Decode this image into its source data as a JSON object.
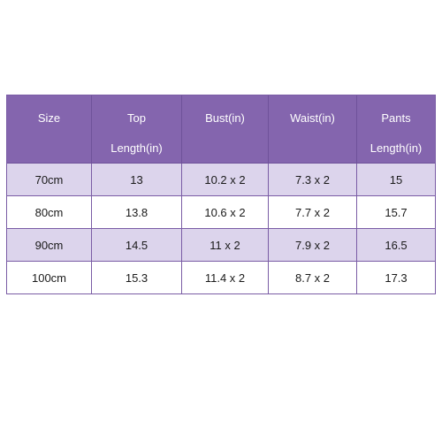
{
  "table": {
    "headers": [
      {
        "line1": "Size",
        "line2": ""
      },
      {
        "line1": "Top",
        "line2": "Length(in)"
      },
      {
        "line1": "Bust(in)",
        "line2": ""
      },
      {
        "line1": "Waist(in)",
        "line2": ""
      },
      {
        "line1": "Pants",
        "line2": "Length(in)"
      }
    ],
    "rows": [
      [
        "70cm",
        "13",
        "10.2 x 2",
        "7.3 x 2",
        "15"
      ],
      [
        "80cm",
        "13.8",
        "10.6 x 2",
        "7.7 x 2",
        "15.7"
      ],
      [
        "90cm",
        "14.5",
        "11 x 2",
        "7.9 x 2",
        "16.5"
      ],
      [
        "100cm",
        "15.3",
        "11.4 x 2",
        "8.7 x 2",
        "17.3"
      ]
    ]
  },
  "colors": {
    "header_bg": "#8465ae",
    "stripe_bg": "#dcd4ec",
    "border": "#7a5ca5"
  }
}
